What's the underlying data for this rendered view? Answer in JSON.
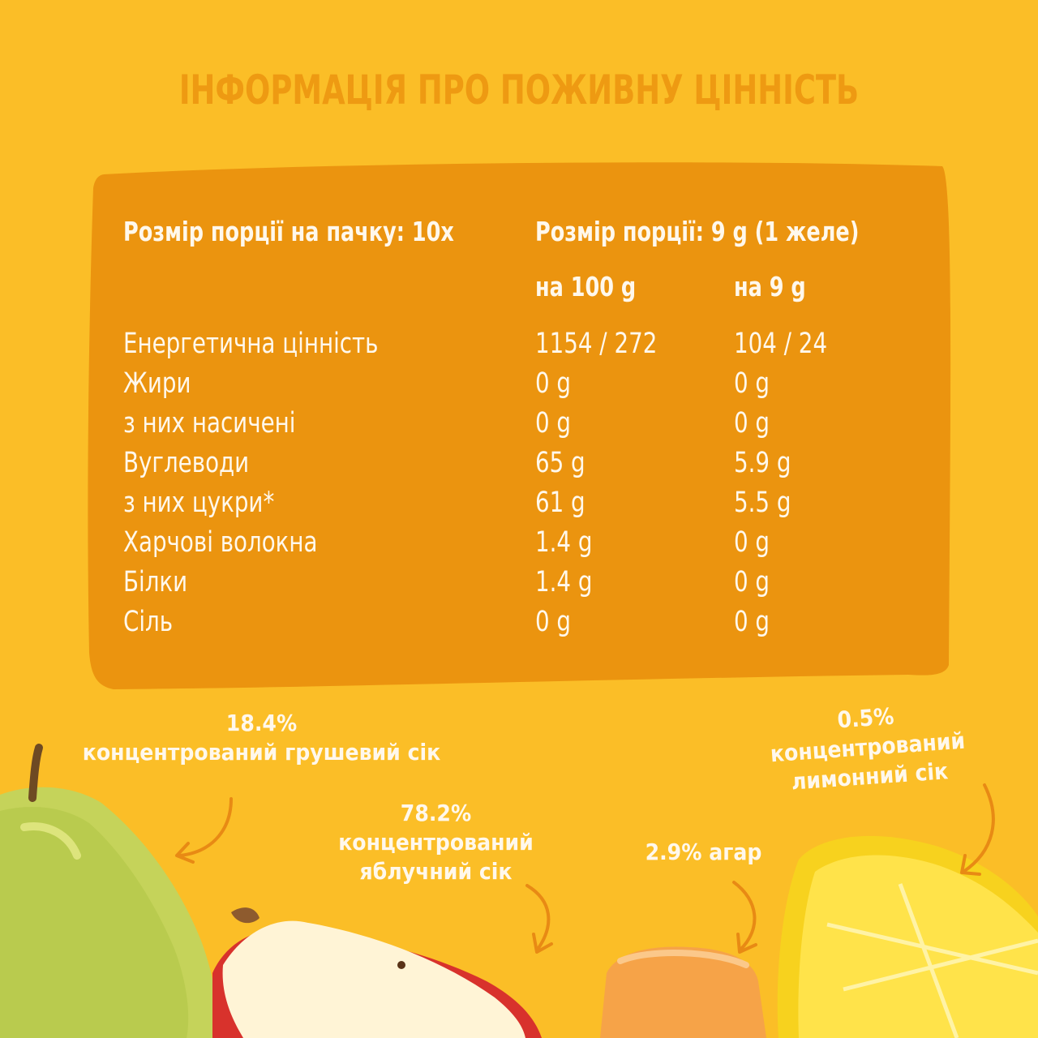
{
  "title": "ІНФОРМАЦІЯ ПРО ПОЖИВНУ ЦІННІСТЬ",
  "colors": {
    "background": "#FBBE27",
    "title": "#EE9A12",
    "panel": "#EB940F",
    "text": "#FFF8EC",
    "arrow": "#E88A14"
  },
  "table": {
    "servings_per_pack": "Розмір порції на пачку: 10x",
    "serving_size": "Розмір порції: 9 g (1 желе)",
    "col_per_100": "на 100 g",
    "col_per_serving": "на 9 g",
    "rows": [
      {
        "name": "Енергетична цінність",
        "per100": "1154 / 272",
        "perServing": "104 / 24"
      },
      {
        "name": "Жири",
        "per100": "0 g",
        "perServing": "0 g"
      },
      {
        "name": "з них насичені",
        "per100": "0 g",
        "perServing": "0 g"
      },
      {
        "name": "Вуглеводи",
        "per100": "65 g",
        "perServing": "5.9 g"
      },
      {
        "name": "з них цукри*",
        "per100": "61 g",
        "perServing": "5.5 g"
      },
      {
        "name": "Харчові волокна",
        "per100": "1.4 g",
        "perServing": "0 g"
      },
      {
        "name": "Білки",
        "per100": "1.4 g",
        "perServing": "0 g"
      },
      {
        "name": "Сіль",
        "per100": "0 g",
        "perServing": "0 g"
      }
    ]
  },
  "ingredients": [
    {
      "percent": "18.4%",
      "label": "концентрований грушевий сік",
      "icon": "pear-icon"
    },
    {
      "percent": "78.2%",
      "label_line1": "концентрований",
      "label_line2": "яблучний сік",
      "icon": "apple-icon"
    },
    {
      "label": "2.9% агар",
      "icon": "jelly-icon"
    },
    {
      "percent": "0.5%",
      "label_line1": "концентрований",
      "label_line2": "лимонний сік",
      "icon": "lemon-icon"
    }
  ]
}
